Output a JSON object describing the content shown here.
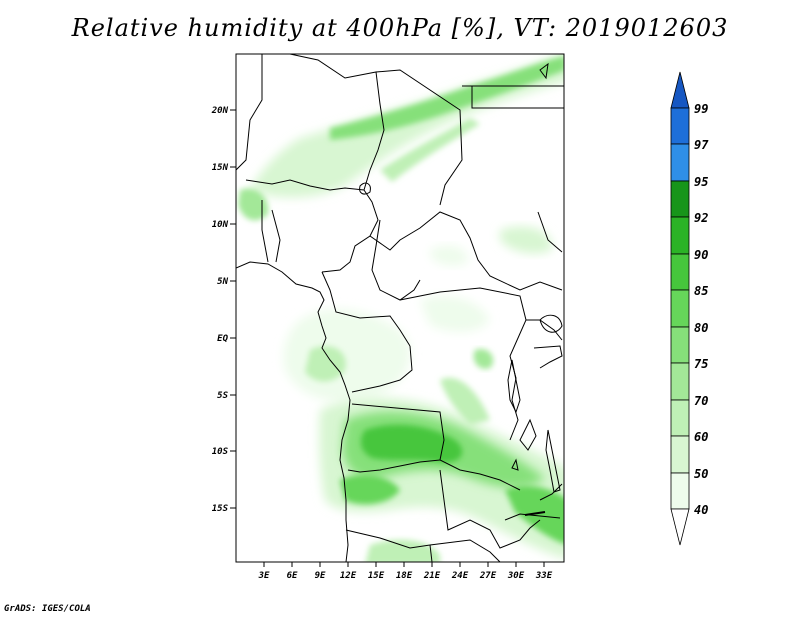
{
  "title": "Relative humidity at 400hPa [%], VT: 2019012603",
  "credit": "GrADS: IGES/COLA",
  "map": {
    "lat_labels": [
      "20N",
      "15N",
      "10N",
      "5N",
      "EQ",
      "5S",
      "10S",
      "15S"
    ],
    "lon_labels": [
      "3E",
      "6E",
      "9E",
      "12E",
      "15E",
      "18E",
      "21E",
      "24E",
      "27E",
      "30E",
      "33E"
    ]
  },
  "colorbar": {
    "labels": [
      "99",
      "97",
      "95",
      "92",
      "90",
      "85",
      "80",
      "75",
      "70",
      "60",
      "50",
      "40"
    ],
    "colors": {
      "40": "#eefcec",
      "50": "#d8f6d2",
      "60": "#bff0b6",
      "70": "#a3e898",
      "75": "#86e07a",
      "80": "#66d65a",
      "85": "#46c63c",
      "90": "#2bb326",
      "92": "#17951a",
      "95": "#2f8fe8",
      "97": "#1e6fd9",
      "99": "#1657c2"
    }
  },
  "colors": {
    "coast": "#000000",
    "background": "#ffffff"
  }
}
